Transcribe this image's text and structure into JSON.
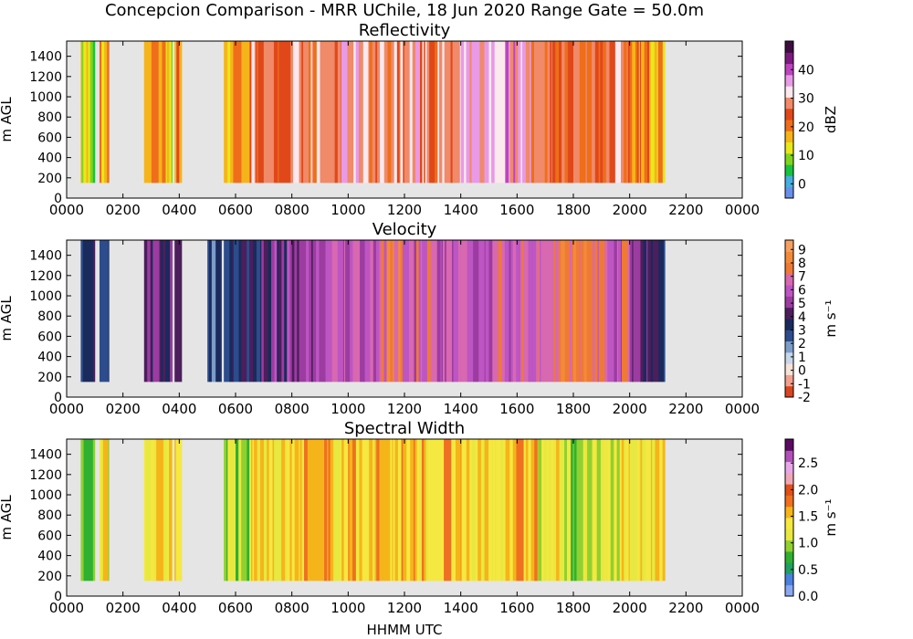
{
  "suptitle": "Concepcion Comparison - MRR UChile, 18 Jun 2020 Range Gate = 50.0m",
  "xlabel": "HHMM UTC",
  "chart_data": [
    {
      "type": "heatmap",
      "title": "Reflectivity",
      "ylabel": "m AGL",
      "x_ticks": [
        "0000",
        "0200",
        "0400",
        "0600",
        "0800",
        "1000",
        "1200",
        "1400",
        "1600",
        "1800",
        "2000",
        "2200",
        "0000"
      ],
      "y_ticks": [
        "0",
        "200",
        "400",
        "600",
        "800",
        "1000",
        "1200",
        "1400"
      ],
      "xlim_hours": [
        0,
        24
      ],
      "ylim": [
        0,
        1550
      ],
      "data_height_range": [
        150,
        1550
      ],
      "colorbar": {
        "label": "dBZ",
        "range": [
          -5,
          50
        ],
        "ticks": [
          "0",
          "10",
          "20",
          "30",
          "40"
        ],
        "tick_values": [
          0,
          10,
          20,
          30,
          40
        ],
        "colors": [
          "#6a8fe8",
          "#46aee0",
          "#19c23e",
          "#80d41e",
          "#e8e81a",
          "#f5b51a",
          "#ef6e1a",
          "#e0481a",
          "#f08a68",
          "#fbe9ee",
          "#e89ae6",
          "#bd44bf",
          "#7d1a7f",
          "#3d0d3f"
        ]
      },
      "segments": [
        {
          "start": "0030",
          "end": "0050",
          "level": 0.32
        },
        {
          "start": "0050",
          "end": "0100",
          "level": 0.22
        },
        {
          "start": "0110",
          "end": "0130",
          "level": 0.4
        },
        {
          "start": "0245",
          "end": "0305",
          "level": 0.38
        },
        {
          "start": "0305",
          "end": "0325",
          "level": 0.46
        },
        {
          "start": "0325",
          "end": "0345",
          "level": 0.36
        },
        {
          "start": "0350",
          "end": "0405",
          "level": 0.42
        },
        {
          "start": "0535",
          "end": "0555",
          "level": 0.38
        },
        {
          "start": "0555",
          "end": "0630",
          "level": 0.44
        },
        {
          "start": "0630",
          "end": "0700",
          "level": 0.58
        },
        {
          "start": "0700",
          "end": "0800",
          "level": 0.56
        },
        {
          "start": "0800",
          "end": "0900",
          "level": 0.58
        },
        {
          "start": "0900",
          "end": "0945",
          "level": 0.6
        },
        {
          "start": "0945",
          "end": "1045",
          "level": 0.68
        },
        {
          "start": "1045",
          "end": "1200",
          "level": 0.6
        },
        {
          "start": "1200",
          "end": "1300",
          "level": 0.64
        },
        {
          "start": "1300",
          "end": "1400",
          "level": 0.58
        },
        {
          "start": "1400",
          "end": "1500",
          "level": 0.7
        },
        {
          "start": "1500",
          "end": "1545",
          "level": 0.74
        },
        {
          "start": "1545",
          "end": "1630",
          "level": 0.72
        },
        {
          "start": "1630",
          "end": "1715",
          "level": 0.58
        },
        {
          "start": "1715",
          "end": "1800",
          "level": 0.56
        },
        {
          "start": "1800",
          "end": "1900",
          "level": 0.55
        },
        {
          "start": "1900",
          "end": "2000",
          "level": 0.56
        },
        {
          "start": "2000",
          "end": "2045",
          "level": 0.48
        },
        {
          "start": "2045",
          "end": "2115",
          "level": 0.38
        }
      ]
    },
    {
      "type": "heatmap",
      "title": "Velocity",
      "ylabel": "m AGL",
      "x_ticks": [
        "0000",
        "0200",
        "0400",
        "0600",
        "0800",
        "1000",
        "1200",
        "1400",
        "1600",
        "1800",
        "2000",
        "2200",
        "0000"
      ],
      "y_ticks": [
        "0",
        "200",
        "400",
        "600",
        "800",
        "1000",
        "1200",
        "1400"
      ],
      "xlim_hours": [
        0,
        24
      ],
      "ylim": [
        0,
        1550
      ],
      "data_height_range": [
        150,
        1550
      ],
      "colorbar": {
        "label": "m s⁻¹",
        "range": [
          -2,
          9.7
        ],
        "ticks": [
          "-2",
          "-1",
          "0",
          "1",
          "2",
          "3",
          "4",
          "5",
          "6",
          "7",
          "8",
          "9"
        ],
        "tick_values": [
          -2,
          -1,
          0,
          1,
          2,
          3,
          4,
          5,
          6,
          7,
          8,
          9
        ],
        "colors": [
          "#d8451e",
          "#f2a090",
          "#f7e2d8",
          "#c8d6ea",
          "#7c9cc8",
          "#2c4c8c",
          "#1a2a5c",
          "#4c1e5c",
          "#9c3ca0",
          "#bd55c2",
          "#d868b0",
          "#ef7a34",
          "#f38a3a",
          "#f5a060"
        ]
      },
      "segments": [
        {
          "start": "0030",
          "end": "0100",
          "level": 0.4
        },
        {
          "start": "0110",
          "end": "0130",
          "level": 0.44
        },
        {
          "start": "0245",
          "end": "0305",
          "level": 0.58
        },
        {
          "start": "0305",
          "end": "0345",
          "level": 0.52
        },
        {
          "start": "0350",
          "end": "0405",
          "level": 0.56
        },
        {
          "start": "0500",
          "end": "0530",
          "level": 0.4
        },
        {
          "start": "0535",
          "end": "0630",
          "level": 0.45
        },
        {
          "start": "0630",
          "end": "0700",
          "level": 0.5
        },
        {
          "start": "0700",
          "end": "0800",
          "level": 0.56
        },
        {
          "start": "0800",
          "end": "0900",
          "level": 0.62
        },
        {
          "start": "0900",
          "end": "1000",
          "level": 0.66
        },
        {
          "start": "1000",
          "end": "1100",
          "level": 0.72
        },
        {
          "start": "1100",
          "end": "1200",
          "level": 0.8
        },
        {
          "start": "1200",
          "end": "1300",
          "level": 0.76
        },
        {
          "start": "1300",
          "end": "1400",
          "level": 0.7
        },
        {
          "start": "1400",
          "end": "1500",
          "level": 0.66
        },
        {
          "start": "1500",
          "end": "1600",
          "level": 0.72
        },
        {
          "start": "1600",
          "end": "1700",
          "level": 0.76
        },
        {
          "start": "1700",
          "end": "1800",
          "level": 0.84
        },
        {
          "start": "1800",
          "end": "1900",
          "level": 0.82
        },
        {
          "start": "1900",
          "end": "2000",
          "level": 0.74
        },
        {
          "start": "2000",
          "end": "2045",
          "level": 0.6
        },
        {
          "start": "2045",
          "end": "2115",
          "level": 0.5
        }
      ]
    },
    {
      "type": "heatmap",
      "title": "Spectral Width",
      "ylabel": "m AGL",
      "x_ticks": [
        "0000",
        "0200",
        "0400",
        "0600",
        "0800",
        "1000",
        "1200",
        "1400",
        "1600",
        "1800",
        "2000",
        "2200",
        "0000"
      ],
      "y_ticks": [
        "0",
        "200",
        "400",
        "600",
        "800",
        "1000",
        "1200",
        "1400"
      ],
      "xlim_hours": [
        0,
        24
      ],
      "ylim": [
        0,
        1550
      ],
      "data_height_range": [
        150,
        1550
      ],
      "colorbar": {
        "label": "m s⁻¹",
        "range": [
          0,
          2.95
        ],
        "ticks": [
          "0.0",
          "0.5",
          "1.0",
          "1.5",
          "2.0",
          "2.5"
        ],
        "tick_values": [
          0,
          0.5,
          1.0,
          1.5,
          2.0,
          2.5
        ],
        "colors": [
          "#8aa8f0",
          "#4a80e0",
          "#20a060",
          "#30b030",
          "#90d030",
          "#e8e840",
          "#f5e840",
          "#f5b51a",
          "#ef7020",
          "#e05018",
          "#f0a8b8",
          "#e8a8e8",
          "#b050b8",
          "#5a0a60"
        ]
      },
      "segments": [
        {
          "start": "0030",
          "end": "0100",
          "level": 0.3
        },
        {
          "start": "0110",
          "end": "0130",
          "level": 0.4
        },
        {
          "start": "0245",
          "end": "0305",
          "level": 0.46
        },
        {
          "start": "0305",
          "end": "0345",
          "level": 0.5
        },
        {
          "start": "0350",
          "end": "0405",
          "level": 0.44
        },
        {
          "start": "0535",
          "end": "0600",
          "level": 0.34
        },
        {
          "start": "0600",
          "end": "0630",
          "level": 0.3
        },
        {
          "start": "0630",
          "end": "0800",
          "level": 0.46
        },
        {
          "start": "0800",
          "end": "1000",
          "level": 0.5
        },
        {
          "start": "1000",
          "end": "1200",
          "level": 0.52
        },
        {
          "start": "1200",
          "end": "1400",
          "level": 0.5
        },
        {
          "start": "1400",
          "end": "1530",
          "level": 0.46
        },
        {
          "start": "1530",
          "end": "1645",
          "level": 0.54
        },
        {
          "start": "1645",
          "end": "1730",
          "level": 0.4
        },
        {
          "start": "1730",
          "end": "1900",
          "level": 0.34
        },
        {
          "start": "1900",
          "end": "2000",
          "level": 0.42
        },
        {
          "start": "2000",
          "end": "2115",
          "level": 0.46
        }
      ]
    }
  ]
}
